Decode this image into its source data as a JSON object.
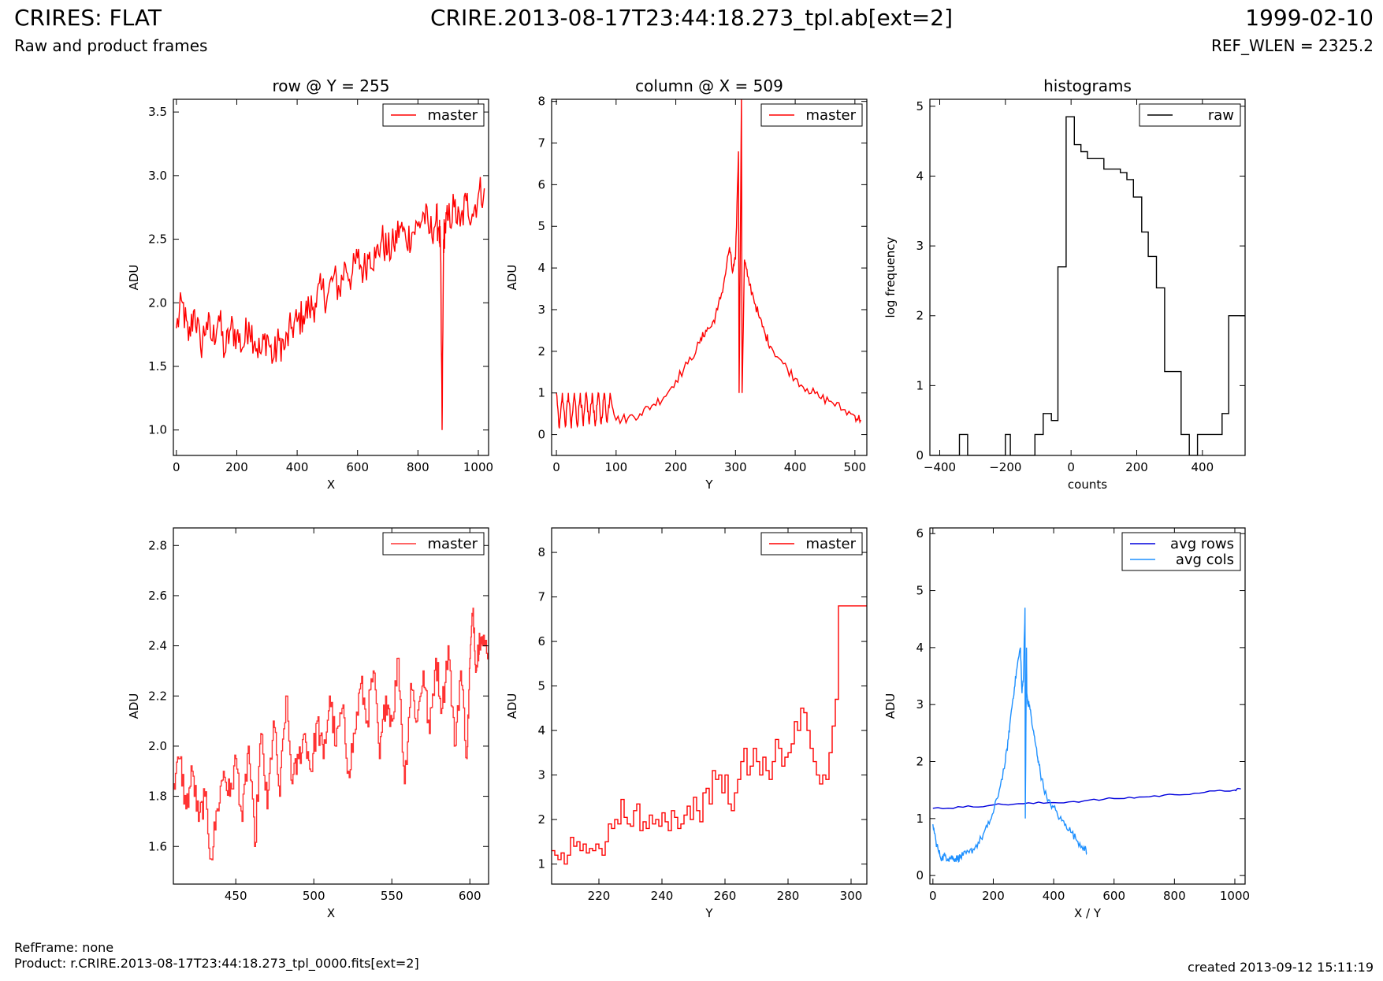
{
  "header": {
    "title_left": "CRIRES: FLAT",
    "subtitle_left": "Raw and product frames",
    "title_center": "CRIRE.2013-08-17T23:44:18.273_tpl.ab[ext=2]",
    "title_right": "1999-02-10",
    "subtitle_right": "REF_WLEN = 2325.2"
  },
  "footer": {
    "refframe": "RefFrame: none",
    "product": "Product: r.CRIRE.2013-08-17T23:44:18.273_tpl_0000.fits[ext=2]",
    "created": "created 2013-09-12 15:11:19"
  },
  "colors": {
    "master": "#ff0000",
    "master_zoom": "#ff3333",
    "raw": "#000000",
    "avg_rows": "#0000dd",
    "avg_cols": "#1e90ff"
  },
  "chart_data": [
    {
      "id": "p1",
      "type": "line",
      "title": "row @ Y = 255",
      "xlabel": "X",
      "ylabel": "ADU",
      "xlim": [
        -10,
        1034
      ],
      "ylim": [
        0.8,
        3.6
      ],
      "xticks": [
        0,
        200,
        400,
        600,
        800,
        1000
      ],
      "yticks": [
        1.0,
        1.5,
        2.0,
        2.5,
        3.0,
        3.5
      ],
      "ytick_decimals": 1,
      "legend": "top-right",
      "series": [
        {
          "name": "master",
          "color": "#ff0000",
          "step": false,
          "x": [
            0,
            20,
            40,
            60,
            80,
            100,
            120,
            140,
            160,
            180,
            200,
            220,
            240,
            260,
            280,
            300,
            320,
            340,
            360,
            380,
            400,
            420,
            440,
            460,
            480,
            500,
            520,
            540,
            560,
            580,
            600,
            620,
            640,
            660,
            680,
            700,
            720,
            740,
            760,
            780,
            800,
            820,
            840,
            860,
            870,
            875,
            880,
            885,
            890,
            900,
            920,
            940,
            960,
            980,
            1000,
            1020
          ],
          "y": [
            1.8,
            2.0,
            1.7,
            1.95,
            1.65,
            1.85,
            1.7,
            1.9,
            1.6,
            1.8,
            1.75,
            1.65,
            1.85,
            1.7,
            1.6,
            1.75,
            1.55,
            1.7,
            1.65,
            1.8,
            1.85,
            1.9,
            1.95,
            2.0,
            2.1,
            2.05,
            2.2,
            2.1,
            2.3,
            2.2,
            2.35,
            2.25,
            2.4,
            2.35,
            2.5,
            2.4,
            2.45,
            2.6,
            2.5,
            2.55,
            2.6,
            2.7,
            2.55,
            2.65,
            2.6,
            2.4,
            1.0,
            2.5,
            2.6,
            2.65,
            2.75,
            2.6,
            2.8,
            2.7,
            2.85,
            2.9
          ],
          "noise": 0.15
        }
      ]
    },
    {
      "id": "p2",
      "type": "line",
      "title": "column @ X = 509",
      "xlabel": "Y",
      "ylabel": "ADU",
      "xlim": [
        -8,
        520
      ],
      "ylim": [
        -0.5,
        8.05
      ],
      "xticks": [
        0,
        100,
        200,
        300,
        400,
        500
      ],
      "yticks": [
        0,
        1,
        2,
        3,
        4,
        5,
        6,
        7,
        8
      ],
      "ytick_decimals": 0,
      "legend": "top-right",
      "series": [
        {
          "name": "master",
          "color": "#ff0000",
          "step": false,
          "x": [
            0,
            5,
            10,
            15,
            20,
            25,
            30,
            35,
            40,
            45,
            50,
            55,
            60,
            65,
            70,
            75,
            80,
            85,
            90,
            100,
            120,
            140,
            160,
            180,
            200,
            220,
            240,
            250,
            260,
            270,
            280,
            290,
            295,
            300,
            305,
            306,
            310,
            311,
            315,
            320,
            330,
            340,
            350,
            360,
            380,
            400,
            420,
            440,
            460,
            480,
            500,
            510
          ],
          "y": [
            1.0,
            0.15,
            1.0,
            0.2,
            1.0,
            0.15,
            1.0,
            0.2,
            1.0,
            0.2,
            1.0,
            0.25,
            1.0,
            0.2,
            1.0,
            0.25,
            1.0,
            0.3,
            1.0,
            0.35,
            0.4,
            0.5,
            0.7,
            0.9,
            1.3,
            1.7,
            2.2,
            2.5,
            2.6,
            3.0,
            3.6,
            4.5,
            3.9,
            4.2,
            6.8,
            1.0,
            8.1,
            1.0,
            4.2,
            3.8,
            3.3,
            2.8,
            2.4,
            2.1,
            1.7,
            1.35,
            1.1,
            0.9,
            0.8,
            0.6,
            0.45,
            0.35
          ],
          "noise": 0.12
        }
      ]
    },
    {
      "id": "p3",
      "type": "line",
      "title": "histograms",
      "xlabel": "counts",
      "ylabel": "log frequency",
      "xlim": [
        -430,
        530
      ],
      "ylim": [
        0,
        5.1
      ],
      "xticks": [
        -400,
        -200,
        0,
        200,
        400
      ],
      "xtick_labels": [
        "−400",
        "−200",
        "0",
        "200",
        "400"
      ],
      "yticks": [
        0,
        1,
        2,
        3,
        4,
        5
      ],
      "ytick_decimals": 0,
      "legend": "top-right",
      "series": [
        {
          "name": "raw",
          "color": "#000000",
          "step": true,
          "x": [
            -430,
            -340,
            -315,
            -200,
            -185,
            -110,
            -85,
            -60,
            -40,
            -15,
            10,
            30,
            50,
            70,
            100,
            125,
            150,
            170,
            190,
            215,
            235,
            260,
            285,
            335,
            360,
            385,
            400,
            460,
            480,
            505,
            530
          ],
          "y": [
            0,
            0.3,
            0,
            0.3,
            0,
            0.3,
            0.6,
            0.5,
            2.7,
            4.85,
            4.45,
            4.35,
            4.25,
            4.25,
            4.1,
            4.1,
            4.05,
            3.95,
            3.7,
            3.2,
            2.85,
            2.4,
            1.2,
            0.3,
            0,
            0.3,
            0.3,
            0.6,
            2.0,
            2.0,
            2.0
          ],
          "noise": 0
        }
      ]
    },
    {
      "id": "p4",
      "type": "line",
      "title": "",
      "xlabel": "X",
      "ylabel": "ADU",
      "xlim": [
        410,
        612
      ],
      "ylim": [
        1.45,
        2.87
      ],
      "xticks": [
        450,
        500,
        550,
        600
      ],
      "yticks": [
        1.6,
        1.8,
        2.0,
        2.2,
        2.4,
        2.6,
        2.8
      ],
      "ytick_decimals": 1,
      "legend": "top-right",
      "series": [
        {
          "name": "master",
          "color": "#ff3333",
          "step": true,
          "x": [
            410,
            414,
            418,
            422,
            426,
            430,
            434,
            438,
            442,
            446,
            450,
            454,
            458,
            462,
            466,
            470,
            474,
            478,
            482,
            486,
            490,
            494,
            498,
            502,
            506,
            510,
            514,
            518,
            522,
            526,
            530,
            534,
            538,
            542,
            546,
            550,
            554,
            558,
            562,
            566,
            570,
            574,
            578,
            582,
            586,
            590,
            594,
            598,
            600,
            602,
            604,
            606,
            608,
            612
          ],
          "y": [
            1.85,
            1.95,
            1.75,
            1.9,
            1.7,
            1.8,
            1.55,
            1.75,
            1.9,
            1.8,
            1.95,
            1.7,
            2.0,
            1.6,
            2.05,
            1.75,
            2.1,
            1.8,
            2.2,
            1.85,
            1.95,
            2.05,
            1.9,
            2.1,
            1.95,
            2.2,
            2.0,
            2.15,
            1.9,
            2.05,
            2.25,
            2.1,
            2.3,
            1.95,
            2.2,
            2.1,
            2.35,
            1.85,
            2.25,
            2.1,
            2.3,
            2.05,
            2.35,
            2.15,
            2.4,
            2.0,
            2.3,
            1.95,
            2.35,
            2.55,
            2.3,
            2.45,
            2.4,
            2.4
          ],
          "noise": 0.06
        }
      ]
    },
    {
      "id": "p5",
      "type": "line",
      "title": "",
      "xlabel": "Y",
      "ylabel": "ADU",
      "xlim": [
        205,
        305
      ],
      "ylim": [
        0.55,
        8.55
      ],
      "xticks": [
        220,
        240,
        260,
        280,
        300
      ],
      "yticks": [
        1,
        2,
        3,
        4,
        5,
        6,
        7,
        8
      ],
      "ytick_decimals": 0,
      "legend": "top-right",
      "series": [
        {
          "name": "master",
          "color": "#ff0000",
          "step": true,
          "x": [
            205,
            206,
            207,
            208,
            209,
            210,
            211,
            212,
            213,
            214,
            215,
            216,
            217,
            218,
            219,
            220,
            221,
            222,
            223,
            224,
            225,
            226,
            227,
            228,
            229,
            230,
            231,
            232,
            233,
            234,
            235,
            236,
            237,
            238,
            239,
            240,
            241,
            242,
            243,
            244,
            245,
            246,
            247,
            248,
            249,
            250,
            251,
            252,
            253,
            254,
            255,
            256,
            257,
            258,
            259,
            260,
            261,
            262,
            263,
            264,
            265,
            266,
            267,
            268,
            269,
            270,
            271,
            272,
            273,
            274,
            275,
            276,
            277,
            278,
            279,
            280,
            281,
            282,
            283,
            284,
            285,
            286,
            287,
            288,
            289,
            290,
            291,
            292,
            293,
            294,
            295,
            296,
            297,
            298,
            299,
            300,
            301,
            302,
            303,
            304,
            305
          ],
          "y": [
            1.3,
            1.2,
            1.1,
            1.25,
            1.0,
            1.2,
            1.6,
            1.4,
            1.5,
            1.3,
            1.45,
            1.25,
            1.35,
            1.3,
            1.45,
            1.35,
            1.2,
            1.5,
            1.9,
            1.8,
            2.0,
            1.9,
            2.45,
            2.05,
            1.9,
            1.85,
            2.2,
            2.35,
            1.75,
            1.95,
            1.8,
            2.1,
            1.9,
            2.0,
            1.85,
            2.15,
            1.95,
            1.75,
            2.2,
            2.05,
            1.8,
            1.9,
            2.1,
            2.3,
            2.0,
            2.5,
            2.2,
            1.95,
            2.6,
            2.7,
            2.35,
            3.1,
            2.9,
            3.0,
            2.6,
            3.0,
            2.35,
            2.2,
            2.6,
            2.9,
            3.3,
            3.6,
            3.0,
            3.2,
            3.6,
            3.3,
            3.0,
            3.4,
            3.1,
            2.9,
            3.3,
            3.8,
            3.6,
            3.2,
            3.4,
            3.5,
            3.7,
            4.2,
            4.0,
            4.5,
            4.4,
            4.0,
            3.6,
            3.3,
            3.0,
            2.8,
            3.0,
            2.9,
            3.5,
            4.1,
            4.7,
            6.8,
            6.8,
            6.8,
            6.8,
            6.8,
            6.8,
            6.8,
            6.8,
            6.8,
            6.8
          ],
          "noise": 0
        }
      ]
    },
    {
      "id": "p6",
      "type": "line",
      "title": "",
      "xlabel": "X / Y",
      "ylabel": "ADU",
      "xlim": [
        -10,
        1034
      ],
      "ylim": [
        -0.15,
        6.1
      ],
      "xticks": [
        0,
        200,
        400,
        600,
        800,
        1000
      ],
      "yticks": [
        0,
        1,
        2,
        3,
        4,
        5,
        6
      ],
      "ytick_decimals": 0,
      "legend": "top-right",
      "series": [
        {
          "name": "avg rows",
          "color": "#0000dd",
          "step": false,
          "x": [
            0,
            100,
            200,
            300,
            400,
            500,
            600,
            700,
            800,
            900,
            1000,
            1020
          ],
          "y": [
            1.18,
            1.2,
            1.24,
            1.26,
            1.28,
            1.31,
            1.35,
            1.38,
            1.42,
            1.46,
            1.5,
            1.52
          ],
          "noise": 0.02
        },
        {
          "name": "avg cols",
          "color": "#1e90ff",
          "step": false,
          "x": [
            0,
            10,
            20,
            30,
            40,
            50,
            60,
            70,
            80,
            90,
            100,
            120,
            140,
            160,
            180,
            200,
            220,
            240,
            250,
            260,
            270,
            280,
            290,
            295,
            300,
            305,
            306,
            310,
            311,
            315,
            320,
            330,
            340,
            350,
            360,
            380,
            400,
            420,
            440,
            460,
            480,
            500,
            510
          ],
          "y": [
            0.9,
            0.6,
            0.4,
            0.3,
            0.35,
            0.3,
            0.32,
            0.3,
            0.3,
            0.32,
            0.35,
            0.4,
            0.5,
            0.65,
            0.85,
            1.1,
            1.5,
            2.0,
            2.4,
            2.9,
            3.3,
            3.7,
            4.0,
            3.2,
            3.5,
            4.7,
            1.0,
            4.0,
            3.2,
            3.0,
            3.0,
            2.6,
            2.3,
            2.0,
            1.7,
            1.3,
            1.2,
            1.0,
            0.9,
            0.75,
            0.6,
            0.5,
            0.4
          ],
          "noise": 0.07
        }
      ]
    }
  ]
}
